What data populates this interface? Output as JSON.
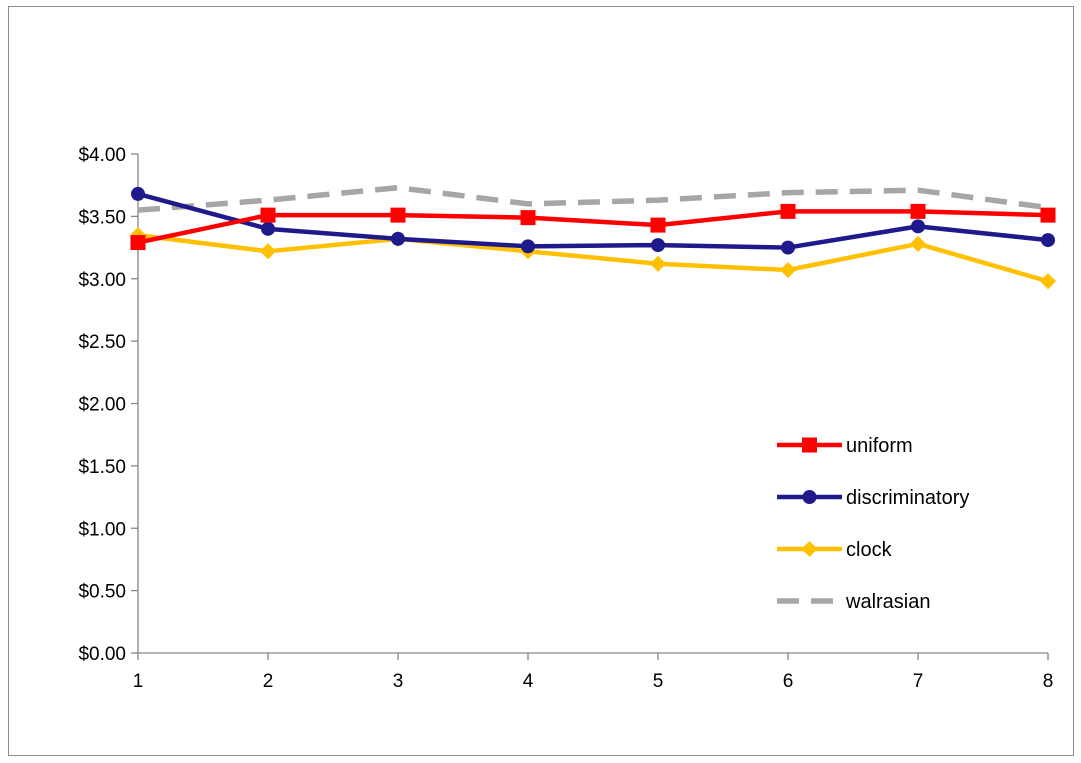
{
  "chart_data": {
    "type": "line",
    "title": "",
    "xlabel": "",
    "ylabel": "",
    "x": [
      1,
      2,
      3,
      4,
      5,
      6,
      7,
      8
    ],
    "x_tick_labels": [
      "1",
      "2",
      "3",
      "4",
      "5",
      "6",
      "7",
      "8"
    ],
    "ylim": [
      0,
      4
    ],
    "y_ticks": [
      0,
      0.5,
      1,
      1.5,
      2,
      2.5,
      3,
      3.5,
      4
    ],
    "y_tick_labels": [
      "$0.00",
      "$0.50",
      "$1.00",
      "$1.50",
      "$2.00",
      "$2.50",
      "$3.00",
      "$3.50",
      "$4.00"
    ],
    "grid": false,
    "legend_position": "bottom-right",
    "series": [
      {
        "name": "uniform",
        "color": "#ff0000",
        "marker": "square",
        "dash": "solid",
        "values": [
          3.29,
          3.51,
          3.51,
          3.49,
          3.43,
          3.54,
          3.54,
          3.51
        ]
      },
      {
        "name": "discriminatory",
        "color": "#1f1a8c",
        "marker": "circle",
        "dash": "solid",
        "values": [
          3.68,
          3.4,
          3.32,
          3.26,
          3.27,
          3.25,
          3.42,
          3.31
        ]
      },
      {
        "name": "clock",
        "color": "#ffc000",
        "marker": "diamond",
        "dash": "solid",
        "values": [
          3.35,
          3.22,
          3.32,
          3.22,
          3.12,
          3.07,
          3.28,
          2.98
        ]
      },
      {
        "name": "walrasian",
        "color": "#a6a6a6",
        "marker": "none",
        "dash": "dashed",
        "values": [
          3.55,
          3.63,
          3.73,
          3.6,
          3.63,
          3.69,
          3.71,
          3.57
        ]
      }
    ]
  }
}
